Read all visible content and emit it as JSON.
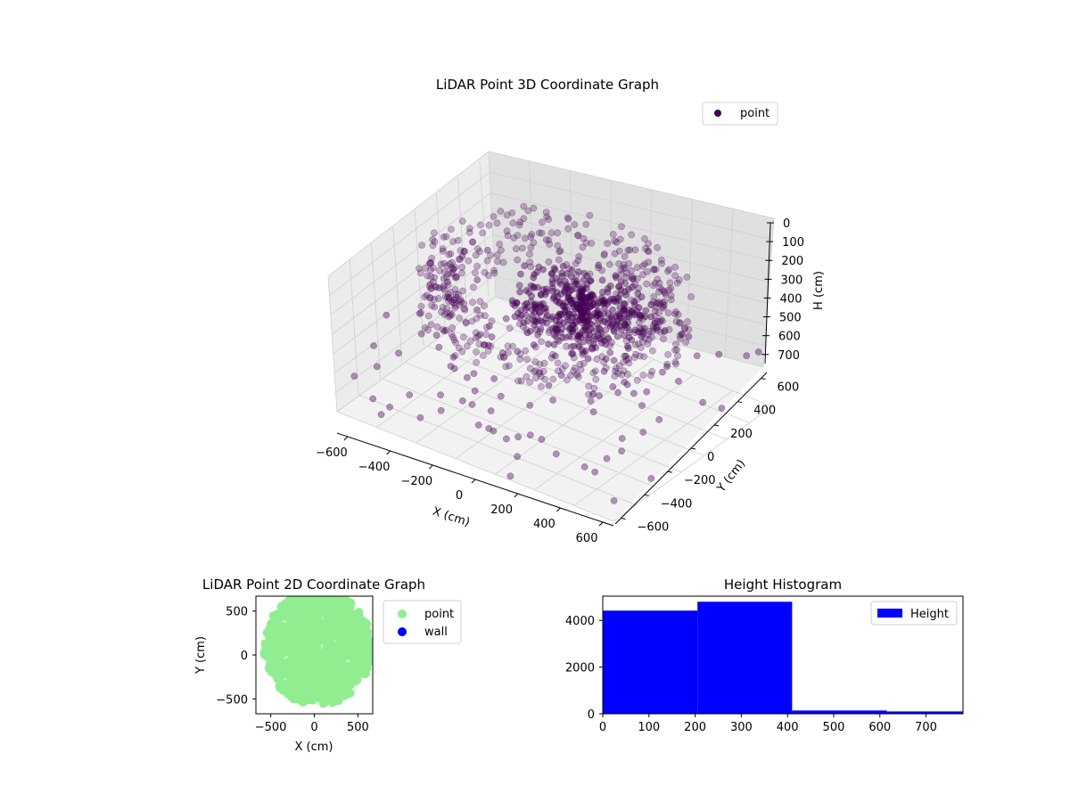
{
  "chart_data": [
    {
      "type": "scatter3d",
      "title": "LiDAR Point 3D Coordinate Graph",
      "xlabel": "X (cm)",
      "ylabel": "Y (cm)",
      "zlabel": "H (cm)",
      "xticks": [
        "−600",
        "−400",
        "−200",
        "0",
        "200",
        "400",
        "600"
      ],
      "yticks": [
        "−600",
        "−400",
        "−200",
        "0",
        "200",
        "400",
        "600"
      ],
      "zticks": [
        "0",
        "100",
        "200",
        "300",
        "400",
        "500",
        "600",
        "700"
      ],
      "xlim": [
        -650,
        650
      ],
      "ylim": [
        -650,
        650
      ],
      "zlim": [
        0,
        760
      ],
      "z_inverted": true,
      "legend": {
        "label": "point",
        "placement": "top-right"
      },
      "colors": {
        "point": "#440154"
      },
      "grid": true
    },
    {
      "type": "scatter",
      "title": "LiDAR Point 2D Coordinate Graph",
      "xlabel": "X (cm)",
      "ylabel": "Y (cm)",
      "xticks": [
        -500,
        0,
        500
      ],
      "yticks": [
        -500,
        0,
        500
      ],
      "xlim": [
        -670,
        670
      ],
      "ylim": [
        -670,
        670
      ],
      "legend": {
        "placement": "outside-right",
        "entries": [
          "point",
          "wall"
        ]
      },
      "series": [
        {
          "name": "point",
          "color": "#90ee90"
        },
        {
          "name": "wall",
          "color": "#0000ff"
        }
      ]
    },
    {
      "type": "bar",
      "title": "Height Histogram",
      "bin_edges": [
        0,
        205,
        410,
        615,
        820
      ],
      "counts": [
        4420,
        4800,
        140,
        100
      ],
      "xticks": [
        0,
        100,
        200,
        300,
        400,
        500,
        600,
        700
      ],
      "yticks": [
        0,
        2000,
        4000
      ],
      "xlim": [
        0,
        780
      ],
      "ylim": [
        0,
        5040
      ],
      "legend": {
        "label": "Height",
        "placement": "top-right"
      },
      "colors": {
        "bar": "#0000ff"
      }
    }
  ]
}
